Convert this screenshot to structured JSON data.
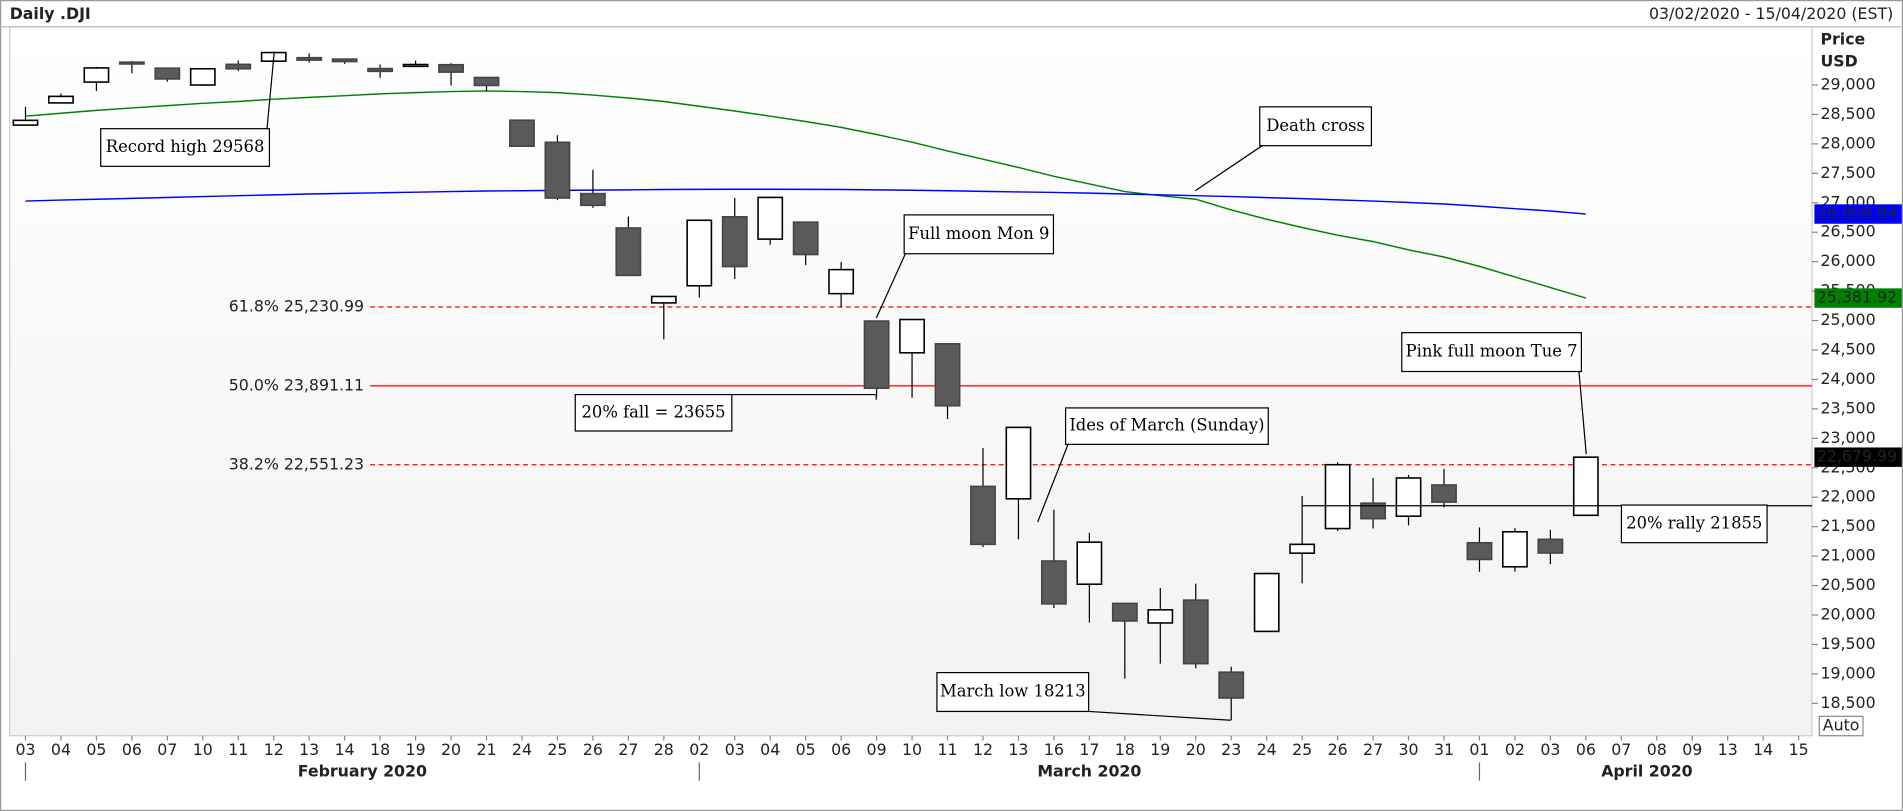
{
  "header": {
    "title": "Daily .DJI",
    "range": "03/02/2020 - 15/04/2020 (EST)"
  },
  "chart_data": {
    "type": "candlestick",
    "categories": [
      "03",
      "04",
      "05",
      "06",
      "07",
      "10",
      "11",
      "12",
      "13",
      "14",
      "18",
      "19",
      "20",
      "21",
      "24",
      "25",
      "26",
      "27",
      "28",
      "02",
      "03",
      "04",
      "05",
      "06",
      "09",
      "10",
      "11",
      "12",
      "13",
      "16",
      "17",
      "18",
      "19",
      "20",
      "23",
      "24",
      "25",
      "26",
      "27",
      "30",
      "31",
      "01",
      "02",
      "03",
      "06",
      "07",
      "08",
      "09",
      "13",
      "14",
      "15"
    ],
    "months": [
      "February 2020",
      "March 2020",
      "April 2020"
    ],
    "open": [
      28319,
      28696,
      29050,
      29388,
      29286,
      29000,
      29351,
      29405,
      29464,
      29440,
      29279,
      29339,
      29345,
      29128,
      28402,
      28027,
      27156,
      26572,
      25300,
      25591,
      26762,
      26383,
      26671,
      25457,
      24992,
      24453,
      24605,
      22184,
      21973,
      20917,
      20523,
      20197,
      19865,
      20253,
      19029,
      19722,
      21050,
      21468,
      21899,
      21678,
      22208,
      21227,
      20819,
      21285,
      21693,
      null,
      null,
      null,
      null,
      null,
      null
    ],
    "high": [
      28630,
      28856,
      29308,
      29409,
      29286,
      29277,
      29416,
      29568,
      29535,
      29440,
      29346,
      29414,
      29371,
      29128,
      28402,
      28149,
      27560,
      26766,
      25420,
      26706,
      27084,
      27102,
      26671,
      25994,
      24992,
      25020,
      24605,
      22837,
      23190,
      21788,
      21395,
      20197,
      20458,
      20532,
      19122,
      20720,
      22020,
      22595,
      22327,
      22378,
      22480,
      21487,
      21477,
      21447,
      22680,
      null,
      null,
      null,
      null,
      null,
      null
    ],
    "low": [
      28319,
      28696,
      28899,
      29197,
      29056,
      28987,
      29235,
      29405,
      29381,
      29360,
      29121,
      29324,
      28991,
      28891,
      27961,
      27046,
      26915,
      25767,
      24681,
      25391,
      25706,
      26286,
      25943,
      25226,
      23706,
      23690,
      23328,
      21154,
      21285,
      20117,
      19873,
      18918,
      19174,
      19095,
      18213,
      19722,
      20538,
      21427,
      21469,
      21522,
      21829,
      20735,
      20736,
      20863,
      21693,
      null,
      null,
      null,
      null,
      null,
      null
    ],
    "close": [
      28400,
      28807,
      29290,
      29379,
      29103,
      29276,
      29276,
      29551,
      29423,
      29398,
      29232,
      29348,
      29219,
      28992,
      27961,
      27081,
      26957,
      25767,
      25409,
      26703,
      25917,
      27091,
      26121,
      25865,
      23851,
      25018,
      23553,
      21200,
      23186,
      20189,
      21237,
      19899,
      20088,
      19174,
      18591,
      20704,
      21200,
      22552,
      21636,
      22327,
      21917,
      20943,
      21413,
      21053,
      22680,
      null,
      null,
      null,
      null,
      null,
      null
    ],
    "up_color": "#ffffff",
    "down_color": "#5a5a5a",
    "lines": [
      {
        "color": "#008000",
        "values": [
          28470,
          28520,
          28570,
          28610,
          28650,
          28690,
          28720,
          28760,
          28790,
          28820,
          28850,
          28870,
          28890,
          28900,
          28890,
          28870,
          28830,
          28780,
          28720,
          28640,
          28560,
          28470,
          28380,
          28280,
          28160,
          28030,
          27880,
          27740,
          27600,
          27450,
          27320,
          27190,
          27120,
          27060,
          26880,
          26720,
          26580,
          26450,
          26340,
          26200,
          26080,
          25920,
          25740,
          25560,
          25381.92,
          null,
          null,
          null,
          null,
          null,
          null
        ]
      },
      {
        "color": "#0000ff",
        "values": [
          27030,
          27045,
          27060,
          27075,
          27090,
          27105,
          27120,
          27135,
          27150,
          27160,
          27170,
          27180,
          27190,
          27200,
          27205,
          27210,
          27215,
          27220,
          27225,
          27228,
          27230,
          27230,
          27228,
          27225,
          27220,
          27212,
          27204,
          27195,
          27185,
          27175,
          27163,
          27150,
          27135,
          27120,
          27105,
          27088,
          27070,
          27050,
          27030,
          27005,
          26980,
          26940,
          26900,
          26860,
          26808.84,
          null,
          null,
          null,
          null,
          null,
          null
        ]
      }
    ],
    "y_axis_title": [
      "Price",
      "USD"
    ],
    "ylim": [
      17950,
      29990
    ],
    "yticks": [
      {
        "value": 18500,
        "label": "18,500"
      },
      {
        "value": 19000,
        "label": "19,000"
      },
      {
        "value": 19500,
        "label": "19,500"
      },
      {
        "value": 20000,
        "label": "20,000"
      },
      {
        "value": 20500,
        "label": "20,500"
      },
      {
        "value": 21000,
        "label": "21,000"
      },
      {
        "value": 21500,
        "label": "21,500"
      },
      {
        "value": 22000,
        "label": "22,000"
      },
      {
        "value": 22500,
        "label": "22,500"
      },
      {
        "value": 23000,
        "label": "23,000"
      },
      {
        "value": 23500,
        "label": "23,500"
      },
      {
        "value": 24000,
        "label": "24,000"
      },
      {
        "value": 24500,
        "label": "24,500"
      },
      {
        "value": 25000,
        "label": "25,000"
      },
      {
        "value": 25500,
        "label": "25,500"
      },
      {
        "value": 26000,
        "label": "26,000"
      },
      {
        "value": 26500,
        "label": "26,500"
      },
      {
        "value": 27000,
        "label": "27,000"
      },
      {
        "value": 27500,
        "label": "27,500"
      },
      {
        "value": 28000,
        "label": "28,000"
      },
      {
        "value": 28500,
        "label": "28,500"
      },
      {
        "value": 29000,
        "label": "29,000"
      }
    ],
    "levels": [
      {
        "value": 25230.99,
        "label": "61.8% 25,230.99",
        "dashed": true,
        "color": "#ff0000"
      },
      {
        "value": 23891.11,
        "label": "50.0% 23,891.11",
        "dashed": false,
        "color": "#ff0000"
      },
      {
        "value": 22551.23,
        "label": "38.2% 22,551.23",
        "dashed": true,
        "color": "#ff0000"
      }
    ],
    "price_tags": [
      {
        "value": 26808.84,
        "label": "26,808.84",
        "color": "#0000ff"
      },
      {
        "value": 25381.92,
        "label": "25,381.92",
        "color": "#008000"
      },
      {
        "value": 22679.99,
        "label": "22,679.99",
        "color": "#000000"
      }
    ],
    "annotations": [
      {
        "text": "Record high 29568",
        "value": 29568
      },
      {
        "text": "Death cross"
      },
      {
        "text": "Full moon Mon 9"
      },
      {
        "text": "20% fall = 23655",
        "value": 23655
      },
      {
        "text": "Ides of March (Sunday)"
      },
      {
        "text": "Pink full moon Tue 7"
      },
      {
        "text": "March low 18213",
        "value": 18213
      },
      {
        "text": "20% rally 21855",
        "value": 21855
      }
    ],
    "auto_button": "Auto"
  }
}
